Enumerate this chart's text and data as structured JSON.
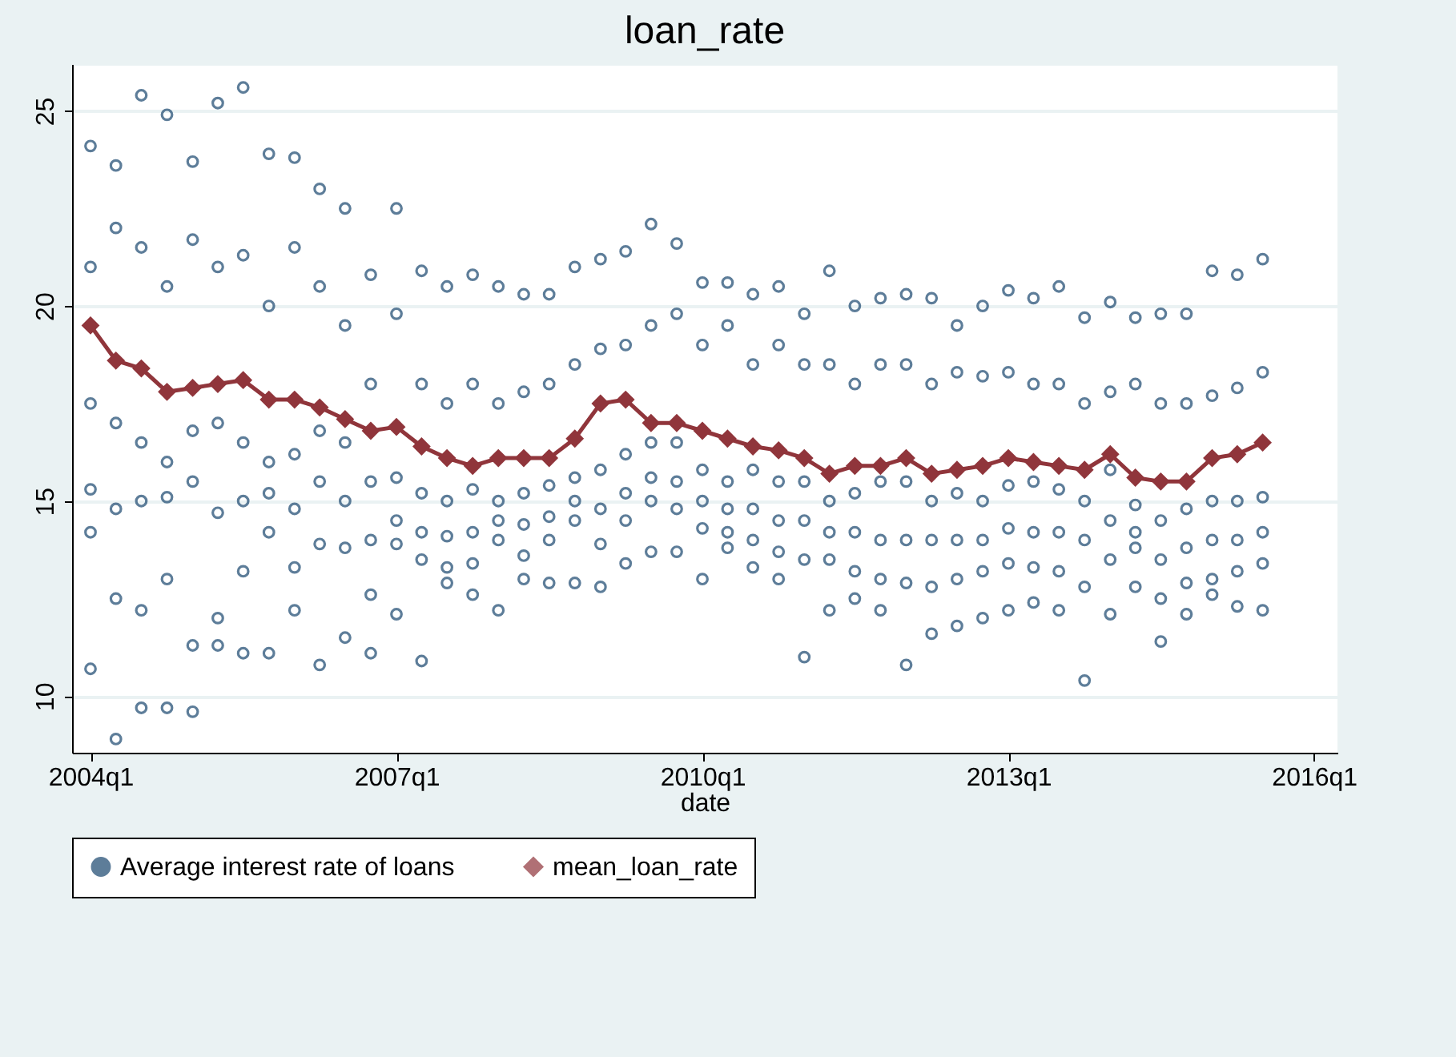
{
  "chart_data": {
    "type": "scatter",
    "title": "loan_rate",
    "xlabel": "date",
    "xlim": [
      "2003-10-27",
      "2016-03-25"
    ],
    "ylim": [
      8.55,
      26.2
    ],
    "xticks": [
      {
        "value": "2004-01",
        "label": "2004q1"
      },
      {
        "value": "2007-01",
        "label": "2007q1"
      },
      {
        "value": "2010-01",
        "label": "2010q1"
      },
      {
        "value": "2013-01",
        "label": "2013q1"
      },
      {
        "value": "2016-01",
        "label": "2016q1"
      }
    ],
    "yticks": [
      10,
      15,
      20,
      25
    ],
    "grid": "y",
    "legend": "bottom",
    "series": [
      {
        "name": "Average interest rate of loans",
        "marker": "circle",
        "color": "#1a476f",
        "x": [
          "2004-01",
          "2004-01",
          "2004-01",
          "2004-01",
          "2004-01",
          "2004-01",
          "2004-04",
          "2004-04",
          "2004-04",
          "2004-04",
          "2004-04",
          "2004-04",
          "2004-07",
          "2004-07",
          "2004-07",
          "2004-07",
          "2004-07",
          "2004-07",
          "2004-10",
          "2004-10",
          "2004-10",
          "2004-10",
          "2004-10",
          "2004-10",
          "2005-01",
          "2005-01",
          "2005-01",
          "2005-01",
          "2005-01",
          "2005-01",
          "2005-04",
          "2005-04",
          "2005-04",
          "2005-04",
          "2005-04",
          "2005-04",
          "2005-07",
          "2005-07",
          "2005-07",
          "2005-07",
          "2005-07",
          "2005-07",
          "2005-10",
          "2005-10",
          "2005-10",
          "2005-10",
          "2005-10",
          "2005-10",
          "2006-01",
          "2006-01",
          "2006-01",
          "2006-01",
          "2006-01",
          "2006-01",
          "2006-04",
          "2006-04",
          "2006-04",
          "2006-04",
          "2006-04",
          "2006-04",
          "2006-07",
          "2006-07",
          "2006-07",
          "2006-07",
          "2006-07",
          "2006-07",
          "2006-10",
          "2006-10",
          "2006-10",
          "2006-10",
          "2006-10",
          "2006-10",
          "2007-01",
          "2007-01",
          "2007-01",
          "2007-01",
          "2007-01",
          "2007-01",
          "2007-04",
          "2007-04",
          "2007-04",
          "2007-04",
          "2007-04",
          "2007-04",
          "2007-07",
          "2007-07",
          "2007-07",
          "2007-07",
          "2007-07",
          "2007-07",
          "2007-10",
          "2007-10",
          "2007-10",
          "2007-10",
          "2007-10",
          "2007-10",
          "2008-01",
          "2008-01",
          "2008-01",
          "2008-01",
          "2008-01",
          "2008-01",
          "2008-04",
          "2008-04",
          "2008-04",
          "2008-04",
          "2008-04",
          "2008-04",
          "2008-07",
          "2008-07",
          "2008-07",
          "2008-07",
          "2008-07",
          "2008-07",
          "2008-10",
          "2008-10",
          "2008-10",
          "2008-10",
          "2008-10",
          "2008-10",
          "2009-01",
          "2009-01",
          "2009-01",
          "2009-01",
          "2009-01",
          "2009-01",
          "2009-04",
          "2009-04",
          "2009-04",
          "2009-04",
          "2009-04",
          "2009-04",
          "2009-07",
          "2009-07",
          "2009-07",
          "2009-07",
          "2009-07",
          "2009-07",
          "2009-10",
          "2009-10",
          "2009-10",
          "2009-10",
          "2009-10",
          "2009-10",
          "2010-01",
          "2010-01",
          "2010-01",
          "2010-01",
          "2010-01",
          "2010-01",
          "2010-04",
          "2010-04",
          "2010-04",
          "2010-04",
          "2010-04",
          "2010-04",
          "2010-07",
          "2010-07",
          "2010-07",
          "2010-07",
          "2010-07",
          "2010-07",
          "2010-10",
          "2010-10",
          "2010-10",
          "2010-10",
          "2010-10",
          "2010-10",
          "2011-01",
          "2011-01",
          "2011-01",
          "2011-01",
          "2011-01",
          "2011-01",
          "2011-04",
          "2011-04",
          "2011-04",
          "2011-04",
          "2011-04",
          "2011-04",
          "2011-07",
          "2011-07",
          "2011-07",
          "2011-07",
          "2011-07",
          "2011-07",
          "2011-10",
          "2011-10",
          "2011-10",
          "2011-10",
          "2011-10",
          "2011-10",
          "2012-01",
          "2012-01",
          "2012-01",
          "2012-01",
          "2012-01",
          "2012-01",
          "2012-04",
          "2012-04",
          "2012-04",
          "2012-04",
          "2012-04",
          "2012-04",
          "2012-07",
          "2012-07",
          "2012-07",
          "2012-07",
          "2012-07",
          "2012-07",
          "2012-10",
          "2012-10",
          "2012-10",
          "2012-10",
          "2012-10",
          "2012-10",
          "2013-01",
          "2013-01",
          "2013-01",
          "2013-01",
          "2013-01",
          "2013-01",
          "2013-04",
          "2013-04",
          "2013-04",
          "2013-04",
          "2013-04",
          "2013-04",
          "2013-07",
          "2013-07",
          "2013-07",
          "2013-07",
          "2013-07",
          "2013-07",
          "2013-10",
          "2013-10",
          "2013-10",
          "2013-10",
          "2013-10",
          "2013-10",
          "2014-01",
          "2014-01",
          "2014-01",
          "2014-01",
          "2014-01",
          "2014-01",
          "2014-04",
          "2014-04",
          "2014-04",
          "2014-04",
          "2014-04",
          "2014-04",
          "2014-07",
          "2014-07",
          "2014-07",
          "2014-07",
          "2014-07",
          "2014-07",
          "2014-10",
          "2014-10",
          "2014-10",
          "2014-10",
          "2014-10",
          "2014-10",
          "2015-01",
          "2015-01",
          "2015-01",
          "2015-01",
          "2015-01",
          "2015-01",
          "2015-04",
          "2015-04",
          "2015-04",
          "2015-04",
          "2015-04",
          "2015-04",
          "2015-07",
          "2015-07",
          "2015-07",
          "2015-07",
          "2015-07",
          "2015-07"
        ],
        "values": [
          24.1,
          21.0,
          17.5,
          15.3,
          14.2,
          10.7,
          23.6,
          22.0,
          17.0,
          14.8,
          12.5,
          8.9,
          25.4,
          21.5,
          16.5,
          15.0,
          12.2,
          9.7,
          24.9,
          20.5,
          16.0,
          15.1,
          13.0,
          9.7,
          23.7,
          21.7,
          16.8,
          15.5,
          11.3,
          9.6,
          25.2,
          21.0,
          17.0,
          14.7,
          12.0,
          11.3,
          25.6,
          21.3,
          16.5,
          15.0,
          13.2,
          11.1,
          23.9,
          20.0,
          16.0,
          15.2,
          14.2,
          11.1,
          23.8,
          21.5,
          16.2,
          14.8,
          13.3,
          12.2,
          23.0,
          20.5,
          16.8,
          15.5,
          13.9,
          10.8,
          22.5,
          19.5,
          16.5,
          15.0,
          13.8,
          11.5,
          20.8,
          18.0,
          15.5,
          14.0,
          12.6,
          11.1,
          22.5,
          19.8,
          15.6,
          14.5,
          13.9,
          12.1,
          20.9,
          18.0,
          15.2,
          14.2,
          13.5,
          10.9,
          20.5,
          17.5,
          15.0,
          14.1,
          13.3,
          12.9,
          20.8,
          18.0,
          15.3,
          14.2,
          13.4,
          12.6,
          20.5,
          17.5,
          15.0,
          14.5,
          14.0,
          12.2,
          20.3,
          17.8,
          15.2,
          14.4,
          13.6,
          13.0,
          20.3,
          18.0,
          15.4,
          14.6,
          14.0,
          12.9,
          21.0,
          18.5,
          15.6,
          15.0,
          14.5,
          12.9,
          21.2,
          18.9,
          15.8,
          14.8,
          13.9,
          12.8,
          21.4,
          19.0,
          16.2,
          15.2,
          14.5,
          13.4,
          22.1,
          19.5,
          16.5,
          15.6,
          15.0,
          13.7,
          21.6,
          19.8,
          16.5,
          15.5,
          14.8,
          13.7,
          20.6,
          19.0,
          15.8,
          15.0,
          14.3,
          13.0,
          20.6,
          19.5,
          15.5,
          14.8,
          14.2,
          13.8,
          20.3,
          18.5,
          15.8,
          14.8,
          14.0,
          13.3,
          20.5,
          19.0,
          15.5,
          14.5,
          13.7,
          13.0,
          19.8,
          18.5,
          15.5,
          14.5,
          13.5,
          11.0,
          20.9,
          18.5,
          15.0,
          14.2,
          13.5,
          12.2,
          20.0,
          18.0,
          15.2,
          14.2,
          13.2,
          12.5,
          20.2,
          18.5,
          15.5,
          14.0,
          13.0,
          12.2,
          20.3,
          18.5,
          15.5,
          14.0,
          12.9,
          10.8,
          20.2,
          18.0,
          15.0,
          14.0,
          12.8,
          11.6,
          19.5,
          18.3,
          15.2,
          14.0,
          13.0,
          11.8,
          20.0,
          18.2,
          15.0,
          14.0,
          13.2,
          12.0,
          20.4,
          18.3,
          15.4,
          14.3,
          13.4,
          12.2,
          20.2,
          18.0,
          15.5,
          14.2,
          13.3,
          12.4,
          20.5,
          18.0,
          15.3,
          14.2,
          13.2,
          12.2,
          19.7,
          17.5,
          15.0,
          14.0,
          12.8,
          10.4,
          20.1,
          17.8,
          15.8,
          14.5,
          13.5,
          12.1,
          19.7,
          18.0,
          14.9,
          14.2,
          13.8,
          12.8,
          19.8,
          17.5,
          14.5,
          13.5,
          12.5,
          11.4,
          19.8,
          17.5,
          14.8,
          13.8,
          12.9,
          12.1,
          20.9,
          17.7,
          15.0,
          14.0,
          13.0,
          12.6,
          20.8,
          17.9,
          15.0,
          14.0,
          13.2,
          12.3,
          21.2,
          18.3,
          15.1,
          14.2,
          13.4,
          12.2
        ]
      },
      {
        "name": "mean_loan_rate",
        "type": "line",
        "marker": "diamond",
        "color": "#90353b",
        "x": [
          "2004-01",
          "2004-04",
          "2004-07",
          "2004-10",
          "2005-01",
          "2005-04",
          "2005-07",
          "2005-10",
          "2006-01",
          "2006-04",
          "2006-07",
          "2006-10",
          "2007-01",
          "2007-04",
          "2007-07",
          "2007-10",
          "2008-01",
          "2008-04",
          "2008-07",
          "2008-10",
          "2009-01",
          "2009-04",
          "2009-07",
          "2009-10",
          "2010-01",
          "2010-04",
          "2010-07",
          "2010-10",
          "2011-01",
          "2011-04",
          "2011-07",
          "2011-10",
          "2012-01",
          "2012-04",
          "2012-07",
          "2012-10",
          "2013-01",
          "2013-04",
          "2013-07",
          "2013-10",
          "2014-01",
          "2014-04",
          "2014-07",
          "2014-10",
          "2015-01",
          "2015-04",
          "2015-07"
        ],
        "values": [
          19.5,
          18.6,
          18.4,
          17.8,
          17.9,
          18.0,
          18.1,
          17.6,
          17.6,
          17.4,
          17.1,
          16.8,
          16.9,
          16.4,
          16.1,
          15.9,
          16.1,
          16.1,
          16.1,
          16.6,
          17.5,
          17.6,
          17.0,
          17.0,
          16.8,
          16.6,
          16.4,
          16.3,
          16.1,
          15.7,
          15.9,
          15.9,
          16.1,
          15.7,
          15.8,
          15.9,
          16.1,
          16.0,
          15.9,
          15.8,
          16.2,
          15.6,
          15.5,
          15.5,
          16.1,
          16.2,
          16.5
        ]
      }
    ]
  }
}
